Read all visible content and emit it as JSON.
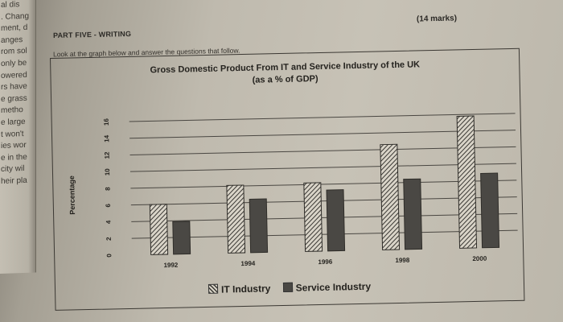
{
  "left_page_fragments": [
    "al dis",
    ". Chang",
    "ment, d",
    "anges",
    "rom sol",
    "only be",
    "owered",
    "rs have",
    "e grass",
    "metho",
    "e large",
    "t won't",
    "ies wor",
    "e in the",
    "city wil",
    "heir pla"
  ],
  "header": {
    "part_title": "PART FIVE - WRITING",
    "marks": "(14 marks)",
    "instruction": "Look at the graph below and answer the questions that follow."
  },
  "colors": {
    "it_fill": "#d9d4c8",
    "it_hatch": "#3a3834",
    "service_fill": "#4a4844",
    "grid": "#4a4742"
  },
  "chart_data": {
    "type": "bar",
    "title": "Gross Domestic Product From IT and Service Industry of the UK",
    "subtitle": "(as a % of GDP)",
    "ylabel": "Percentage",
    "xlabel": "",
    "ylim": [
      0,
      16
    ],
    "yticks": [
      0,
      2,
      4,
      6,
      8,
      10,
      12,
      14,
      16
    ],
    "categories": [
      "1992",
      "1994",
      "1996",
      "1998",
      "2000"
    ],
    "series": [
      {
        "name": "IT Industry",
        "values": [
          6.0,
          8.1,
          8.2,
          12.6,
          15.8
        ]
      },
      {
        "name": "Service Industry",
        "values": [
          3.9,
          6.4,
          7.3,
          8.4,
          8.9
        ]
      }
    ],
    "grid": true,
    "legend_position": "bottom-center"
  }
}
